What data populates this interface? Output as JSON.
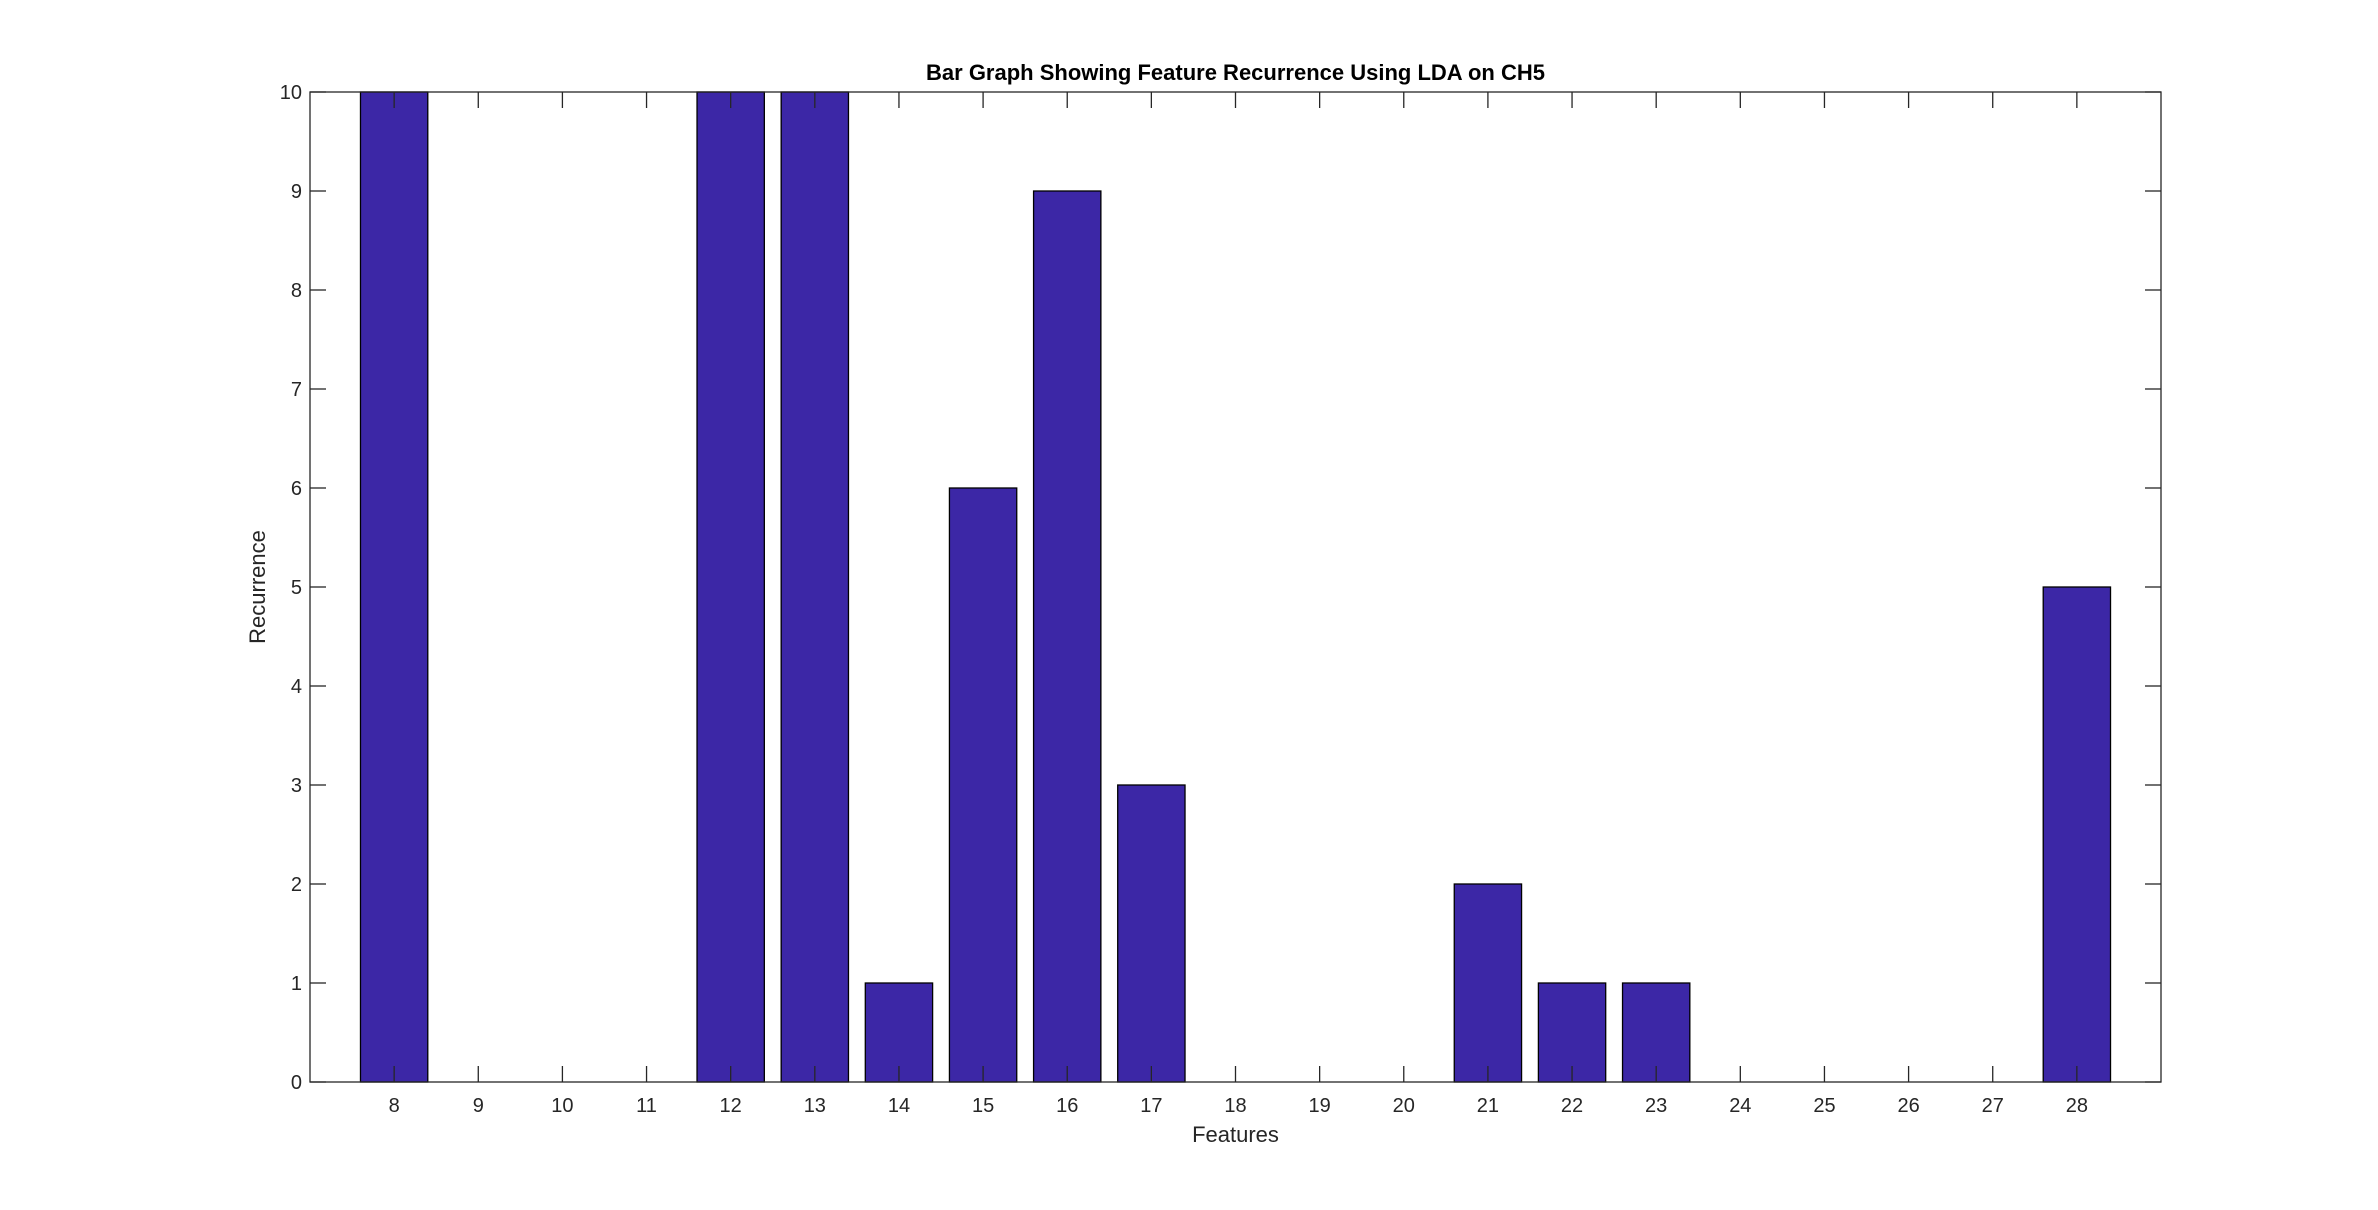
{
  "chart_data": {
    "type": "bar",
    "title": "Bar Graph Showing Feature Recurrence Using LDA on CH5",
    "xlabel": "Features",
    "ylabel": "Recurrence",
    "categories": [
      "8",
      "9",
      "10",
      "11",
      "12",
      "13",
      "14",
      "15",
      "16",
      "17",
      "18",
      "19",
      "20",
      "21",
      "22",
      "23",
      "24",
      "25",
      "26",
      "27",
      "28"
    ],
    "values": [
      10,
      0,
      0,
      0,
      10,
      10,
      1,
      6,
      9,
      3,
      0,
      0,
      0,
      2,
      1,
      1,
      0,
      0,
      0,
      0,
      5
    ],
    "ylim": [
      0,
      10
    ],
    "yticks": [
      0,
      1,
      2,
      3,
      4,
      5,
      6,
      7,
      8,
      9,
      10
    ],
    "grid": false,
    "bar_color": "#3c27a6"
  }
}
